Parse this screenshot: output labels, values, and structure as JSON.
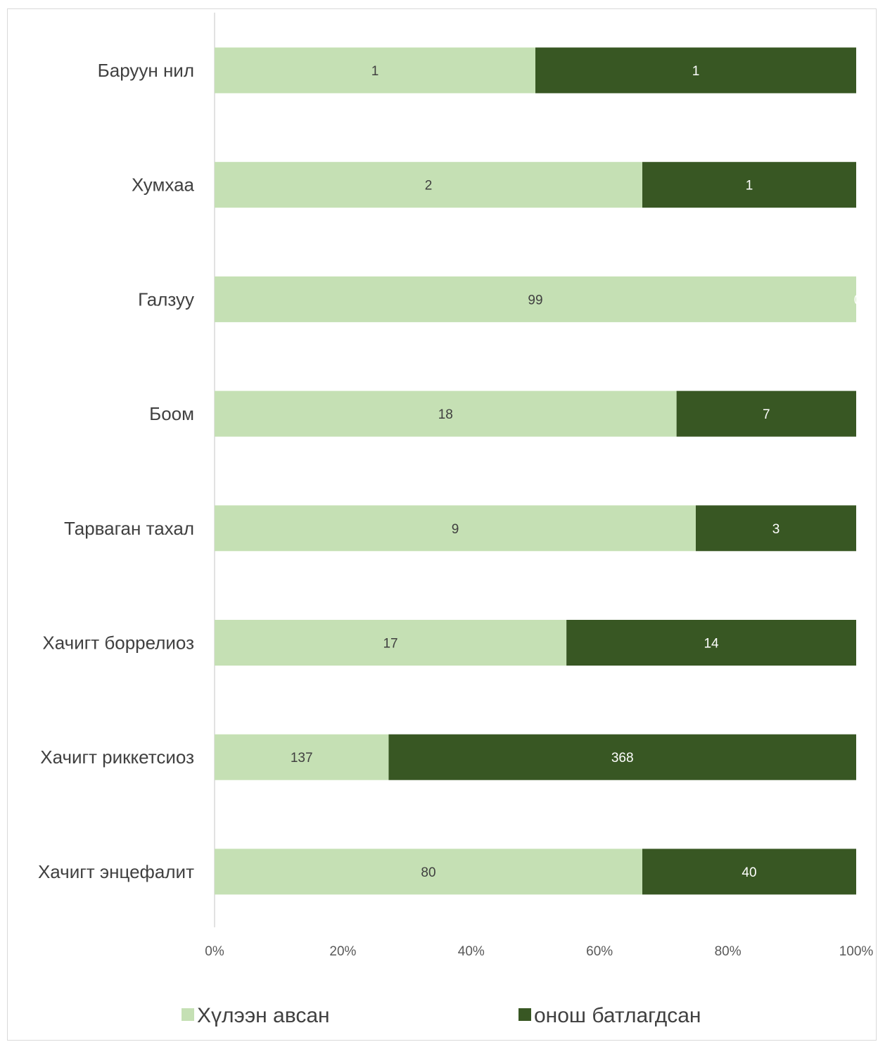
{
  "chart_data": {
    "type": "bar",
    "orientation": "horizontal",
    "stacking": "percent",
    "categories": [
      "Баруун нил",
      "Хумхаа",
      "Галзуу",
      "Боом",
      "Тарваган тахал",
      "Хачигт боррелиоз",
      "Хачигт риккетсиоз",
      "Хачигт энцефалит"
    ],
    "series": [
      {
        "name": "Хүлээн авсан",
        "values": [
          1,
          2,
          99,
          18,
          9,
          17,
          137,
          80
        ],
        "color": "#c5e0b4",
        "label_color": "#404040"
      },
      {
        "name": "онош батлагдсан",
        "values": [
          1,
          1,
          0,
          7,
          3,
          14,
          368,
          40
        ],
        "color": "#385723",
        "label_color": "#ffffff"
      }
    ],
    "x_ticks": [
      "0%",
      "20%",
      "40%",
      "60%",
      "80%",
      "100%"
    ],
    "xlim": [
      0,
      100
    ],
    "grid": false,
    "legend_position": "bottom"
  }
}
